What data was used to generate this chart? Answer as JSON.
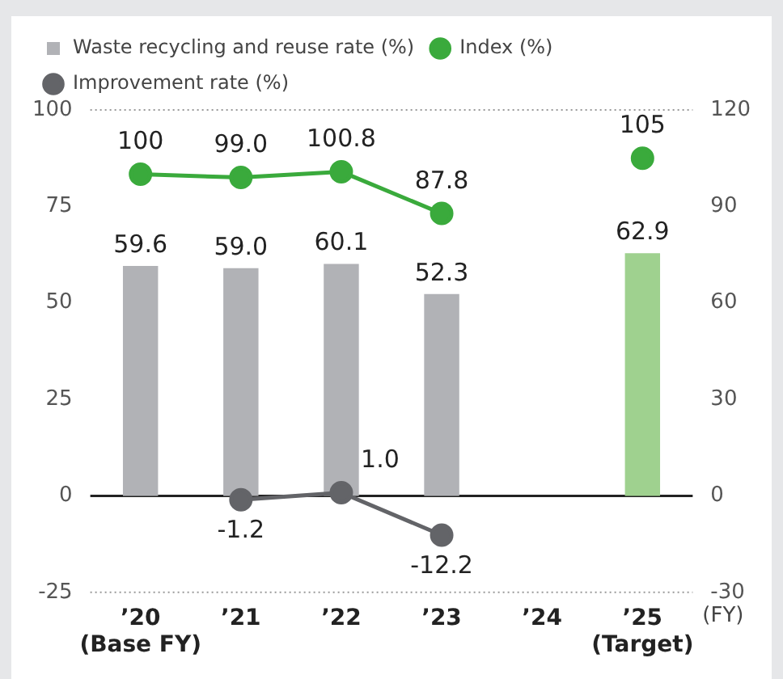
{
  "chart_data": {
    "type": "bar",
    "categories": [
      "’20\n(Base FY)",
      "’21",
      "’22",
      "’23",
      "’24",
      "’25\n(Target)"
    ],
    "xlabel": "(FY)",
    "series": [
      {
        "name": "Waste recycling and reuse rate (%)",
        "color": "#b1b2b6",
        "colors": [
          "#b1b2b6",
          "#b1b2b6",
          "#b1b2b6",
          "#b1b2b6",
          "#b1b2b6",
          "#9fd18f"
        ],
        "values": [
          59.6,
          59.0,
          60.1,
          52.3,
          null,
          62.9
        ],
        "value_labels": [
          "59.6",
          "59.0",
          "60.1",
          "52.3",
          null,
          "62.9"
        ]
      },
      {
        "name": "Index (%)",
        "type": "line",
        "axis": "y2",
        "color": "#3aaa3c",
        "values": [
          100,
          99.0,
          100.8,
          87.8,
          null,
          105
        ],
        "value_labels": [
          "100",
          "99.0",
          "100.8",
          "87.8",
          null,
          "105"
        ]
      },
      {
        "name": "Improvement rate (%)",
        "type": "line",
        "axis": "y2",
        "color": "#636468",
        "values": [
          null,
          -1.2,
          1.0,
          -12.2,
          null,
          null
        ],
        "value_labels": [
          null,
          "-1.2",
          "1.0",
          "-12.2",
          null,
          null
        ]
      }
    ],
    "ylim": [
      -25,
      100
    ],
    "yticks": [
      -25,
      0,
      25,
      50,
      75,
      100
    ],
    "y2lim": [
      -30,
      120
    ],
    "y2ticks": [
      -30,
      0,
      30,
      60,
      90,
      120
    ],
    "ref_lines": [
      {
        "axis": "y",
        "value": 100,
        "color": "#999999",
        "line_style": "dotted"
      },
      {
        "axis": "y",
        "value": 0,
        "color": "#222222",
        "line_style": "solid"
      },
      {
        "axis": "y",
        "value": -25,
        "color": "#999999",
        "line_style": "dotted"
      }
    ],
    "legend": "top",
    "marker": "circle",
    "grid": false
  }
}
